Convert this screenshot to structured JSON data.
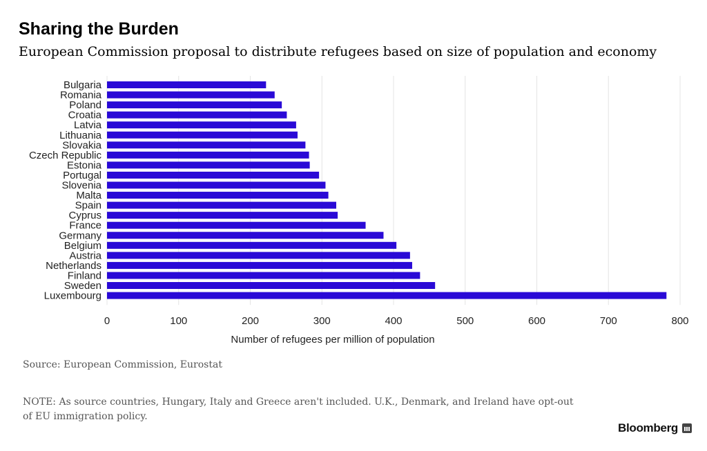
{
  "title": "Sharing the Burden",
  "subtitle": "European Commission proposal to distribute refugees based on size of population and economy",
  "source": "Source: European Commission, Eurostat",
  "note": "NOTE: As source countries, Hungary, Italy and Greece aren't included. U.K., Denmark, and Ireland have opt-out of EU immigration policy.",
  "brand": "Bloomberg",
  "colors": {
    "bar": "#2a0ad6",
    "grid": "#e4e4e4"
  },
  "chart_data": {
    "type": "bar",
    "orientation": "horizontal",
    "categories": [
      "Bulgaria",
      "Romania",
      "Poland",
      "Croatia",
      "Latvia",
      "Lithuania",
      "Slovakia",
      "Czech Republic",
      "Estonia",
      "Portugal",
      "Slovenia",
      "Malta",
      "Spain",
      "Cyprus",
      "France",
      "Germany",
      "Belgium",
      "Austria",
      "Netherlands",
      "Finland",
      "Sweden",
      "Luxembourg"
    ],
    "values": [
      222,
      234,
      244,
      251,
      264,
      266,
      277,
      282,
      283,
      296,
      305,
      309,
      320,
      322,
      361,
      386,
      404,
      423,
      426,
      437,
      458,
      781
    ],
    "xlabel": "Number of refugees per million of population",
    "xlim": [
      0,
      800
    ],
    "xticks": [
      0,
      100,
      200,
      300,
      400,
      500,
      600,
      700,
      800
    ],
    "grid": true
  }
}
